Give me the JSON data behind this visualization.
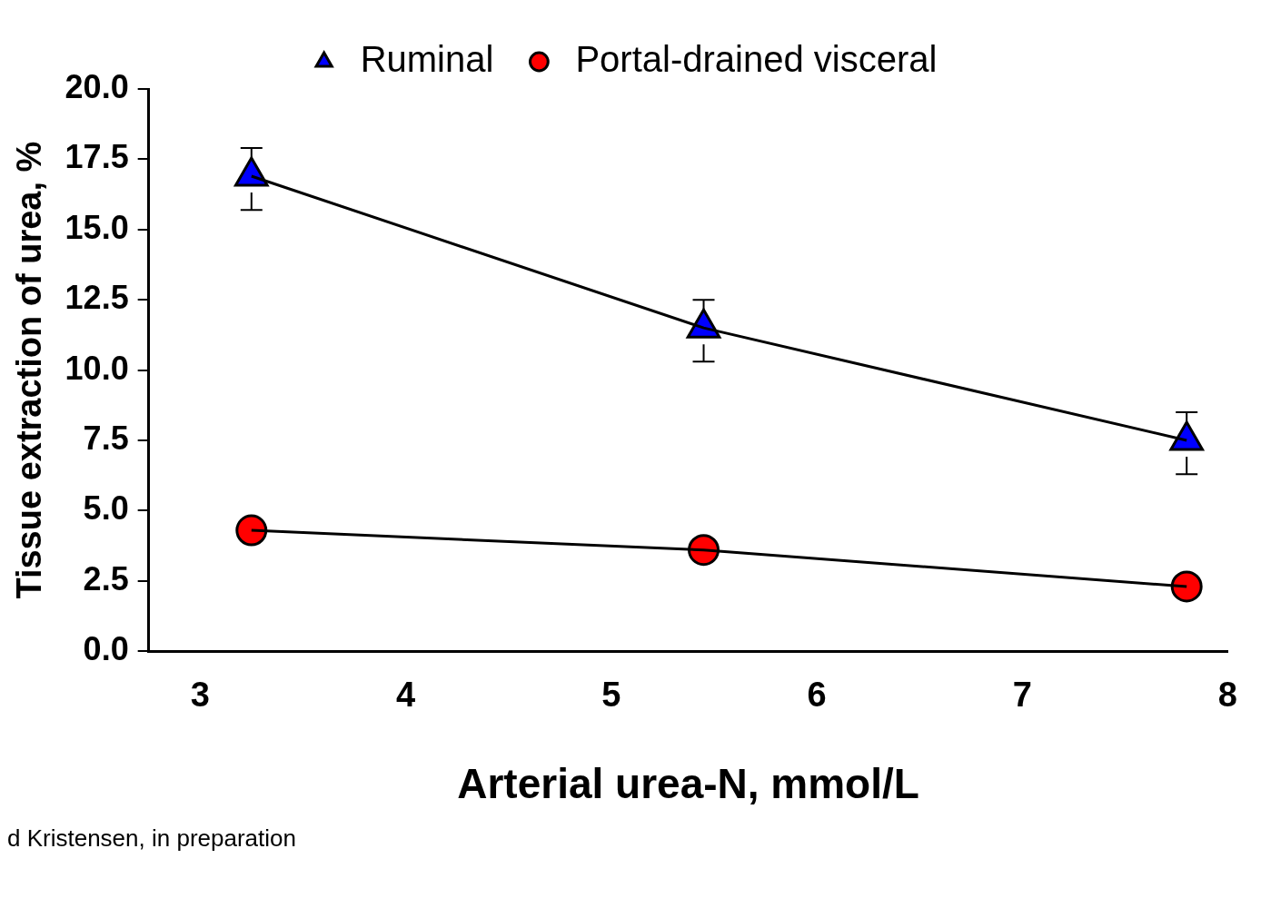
{
  "chart_data": {
    "type": "line",
    "xlabel": "Arterial urea-N, mmol/L",
    "ylabel": "Tissue extraction of urea, %",
    "x": [
      3.25,
      5.45,
      7.8
    ],
    "series": [
      {
        "name": "Ruminal",
        "color": "#0000ff",
        "marker": "triangle",
        "values": [
          16.9,
          11.5,
          7.5
        ],
        "errors": [
          [
            15.7,
            17.9
          ],
          [
            10.3,
            12.5
          ],
          [
            6.3,
            8.5
          ]
        ]
      },
      {
        "name": "Portal-drained visceral",
        "color": "#ff0000",
        "marker": "circle",
        "values": [
          4.3,
          3.6,
          2.3
        ]
      }
    ],
    "xlim": [
      2.75,
      8
    ],
    "xticks": [
      3,
      4,
      5,
      6,
      7,
      8
    ],
    "ylim": [
      0,
      20
    ],
    "yticks": [
      {
        "value": 0,
        "label": "0.0"
      },
      {
        "value": 2.5,
        "label": "2.5"
      },
      {
        "value": 5,
        "label": "5.0"
      },
      {
        "value": 7.5,
        "label": "7.5"
      },
      {
        "value": 10,
        "label": "10.0"
      },
      {
        "value": 12.5,
        "label": "12.5"
      },
      {
        "value": 15,
        "label": "15.0"
      },
      {
        "value": 17.5,
        "label": "17.5"
      },
      {
        "value": 20,
        "label": "20.0"
      }
    ],
    "grid": false,
    "legend": "top",
    "line_style": "solid",
    "annotations": [
      "d Kristensen, in preparation"
    ]
  }
}
